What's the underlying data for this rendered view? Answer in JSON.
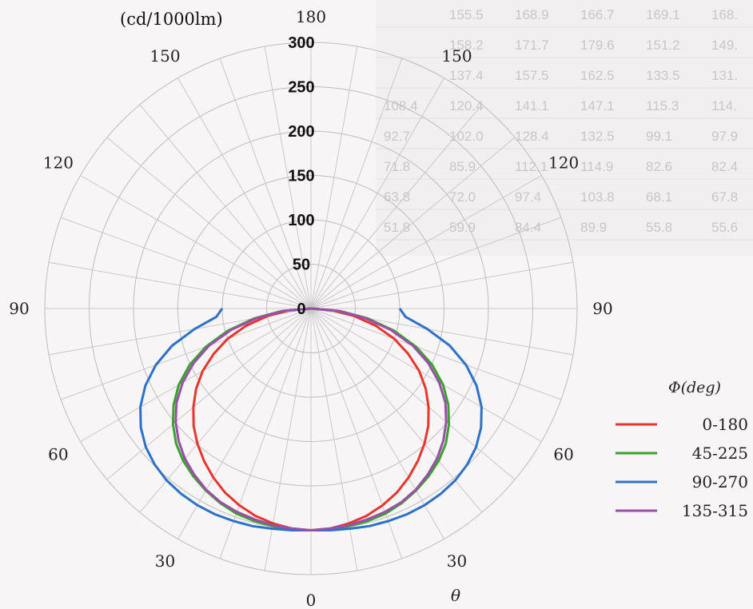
{
  "chart_data": {
    "type": "polar-line",
    "unit": "(cd/1000lm)",
    "theta_symbol": "θ",
    "radial_ticks": [
      0,
      50,
      100,
      150,
      200,
      250,
      300
    ],
    "rmax": 300,
    "angle_labels": [
      {
        "text": "0",
        "deg": 0
      },
      {
        "text": "30",
        "deg": 30
      },
      {
        "text": "60",
        "deg": 60
      },
      {
        "text": "90",
        "deg": 90
      },
      {
        "text": "120",
        "deg": 120
      },
      {
        "text": "150",
        "deg": 150
      },
      {
        "text": "180",
        "deg": 180
      },
      {
        "text": "150",
        "deg": 210
      },
      {
        "text": "120",
        "deg": 240
      },
      {
        "text": "90",
        "deg": 270
      },
      {
        "text": "60",
        "deg": 300
      },
      {
        "text": "30",
        "deg": 330
      }
    ],
    "legend": {
      "title": "Φ(deg)",
      "placement": "right"
    },
    "series": [
      {
        "name": "0-180",
        "color": "#e8352e",
        "angles": [
          0,
          5,
          10,
          15,
          20,
          25,
          30,
          35,
          40,
          45,
          50,
          55,
          60,
          65,
          70,
          75,
          80,
          85,
          90
        ],
        "values": [
          250,
          249,
          246,
          242,
          236,
          229,
          220,
          210,
          199,
          187,
          173,
          158,
          141,
          121,
          100,
          76,
          50,
          25,
          0
        ]
      },
      {
        "name": "45-225",
        "color": "#3aa22e",
        "angles": [
          0,
          5,
          10,
          15,
          20,
          25,
          30,
          35,
          40,
          45,
          50,
          55,
          60,
          65,
          70,
          75,
          80,
          85,
          90
        ],
        "values": [
          250,
          250,
          249,
          248,
          246,
          242,
          237,
          231,
          224,
          215,
          203,
          189,
          172,
          151,
          126,
          97,
          65,
          33,
          0
        ]
      },
      {
        "name": "90-270",
        "color": "#2e72c8",
        "angles": [
          0,
          5,
          10,
          15,
          20,
          25,
          30,
          35,
          40,
          45,
          50,
          55,
          60,
          65,
          70,
          75,
          80,
          85,
          90
        ],
        "values": [
          250,
          251,
          252,
          254,
          255,
          256,
          256,
          255,
          253,
          249,
          243,
          234,
          222,
          206,
          186,
          162,
          133,
          107,
          100
        ]
      },
      {
        "name": "135-315",
        "color": "#9a4fa8",
        "angles": [
          0,
          5,
          10,
          15,
          20,
          25,
          30,
          35,
          40,
          45,
          50,
          55,
          60,
          65,
          70,
          75,
          80,
          85,
          90
        ],
        "values": [
          250,
          249,
          248,
          246,
          244,
          241,
          236,
          229,
          221,
          211,
          199,
          185,
          167,
          146,
          122,
          93,
          62,
          31,
          0
        ]
      }
    ]
  },
  "background_table": {
    "rows": [
      [
        "155.5",
        "168.9",
        "166.7",
        "169.1",
        "168."
      ],
      [
        "158.2",
        "171.7",
        "179.6",
        "151.2",
        "149."
      ],
      [
        "137.4",
        "157.5",
        "162.5",
        "133.5",
        "131."
      ],
      [
        "108.4",
        "120.4",
        "141.1",
        "147.1",
        "115.3",
        "114."
      ],
      [
        "92.7",
        "102.0",
        "128.4",
        "132.5",
        "99.1",
        "97.9"
      ],
      [
        "71.8",
        "85.9",
        "112.1",
        "114.9",
        "82.6",
        "82.4"
      ],
      [
        "63.8",
        "72.0",
        "97.4",
        "103.8",
        "68.1",
        "67.8"
      ],
      [
        "51.8",
        "59.9",
        "84.4",
        "89.9",
        "55.8",
        "55.6"
      ]
    ]
  }
}
